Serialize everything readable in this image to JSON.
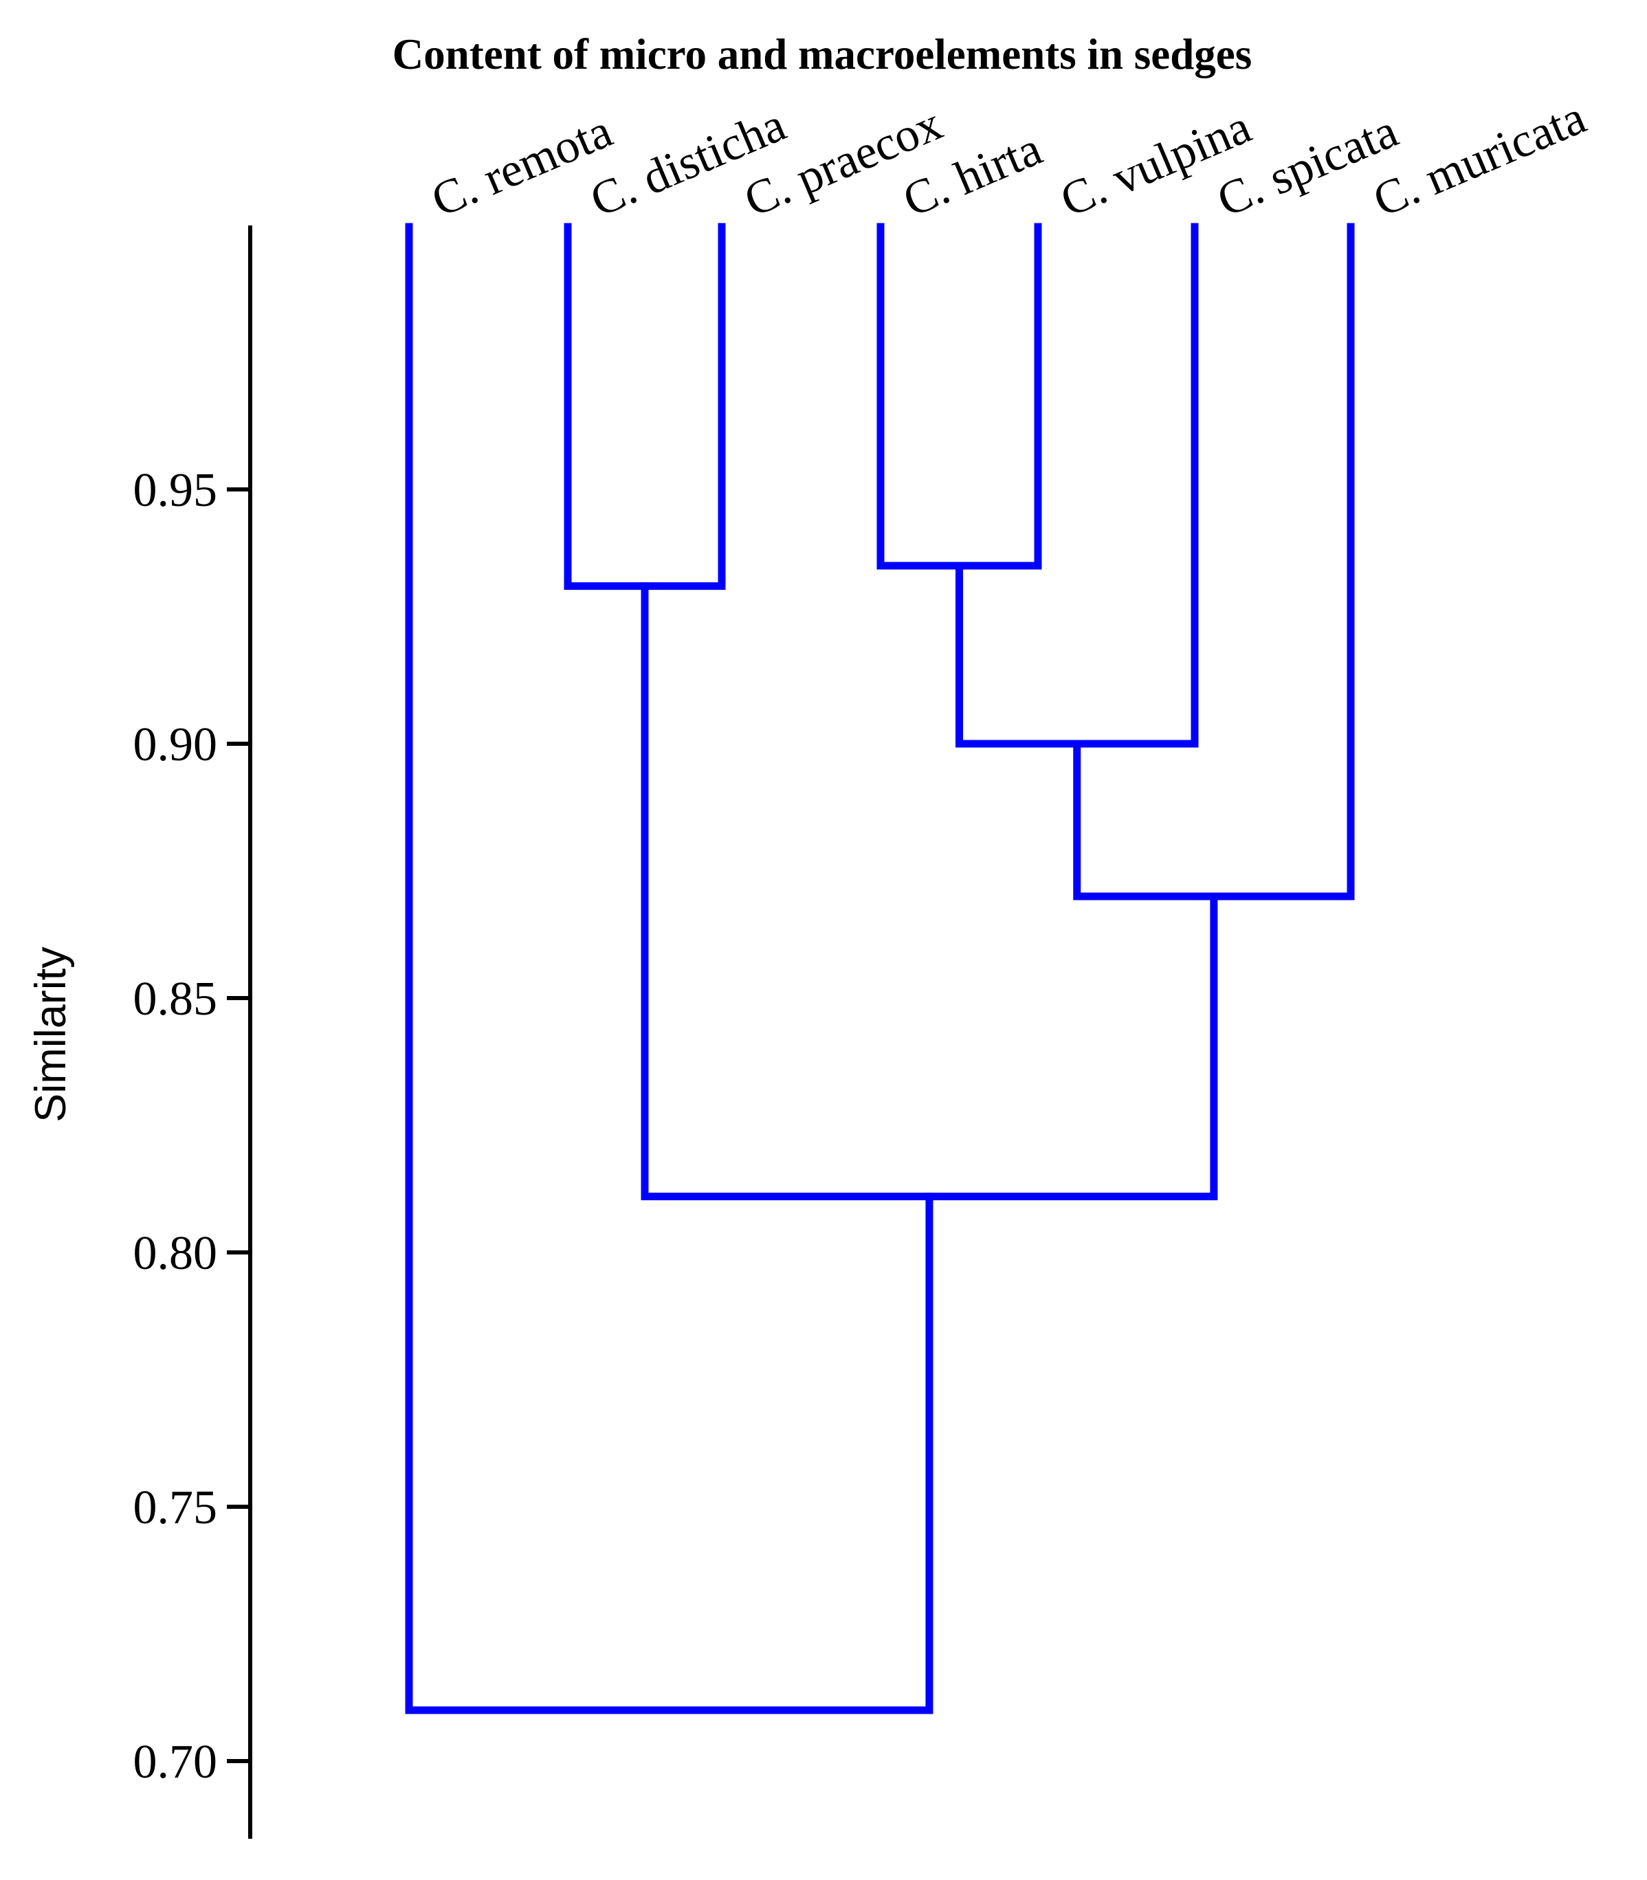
{
  "colors": {
    "branch": "#0000ff",
    "axis": "#000000",
    "background": "#ffffff"
  },
  "chart_data": {
    "type": "dendrogram",
    "title": "Content of micro and macroelements in sedges",
    "ylabel": "Similarity",
    "xlabel": "",
    "ylim": [
      0.68,
      0.995
    ],
    "yticks": [
      0.95,
      0.9,
      0.85,
      0.8,
      0.75,
      0.7
    ],
    "ytick_labels": [
      "0.95",
      "0.90",
      "0.85",
      "0.80",
      "0.75",
      "0.70"
    ],
    "grid": false,
    "leaves": [
      "C. remota",
      "C. disticha",
      "C. praecox",
      "C. hirta",
      "C. vulpina",
      "C. spicata",
      "C. muricata"
    ],
    "merges": [
      {
        "children": [
          "C. disticha",
          "C. praecox"
        ],
        "similarity": 0.931
      },
      {
        "children": [
          "C. hirta",
          "C. vulpina"
        ],
        "similarity": 0.935
      },
      {
        "children": [
          "(C. hirta, C. vulpina)",
          "C. spicata"
        ],
        "similarity": 0.9
      },
      {
        "children": [
          "((C. hirta, C. vulpina), C. spicata)",
          "C. muricata"
        ],
        "similarity": 0.87
      },
      {
        "children": [
          "(C. disticha, C. praecox)",
          "(((C. hirta, C. vulpina), C. spicata), C. muricata)"
        ],
        "similarity": 0.811
      },
      {
        "children": [
          "C. remota",
          "rest"
        ],
        "similarity": 0.71
      }
    ]
  }
}
